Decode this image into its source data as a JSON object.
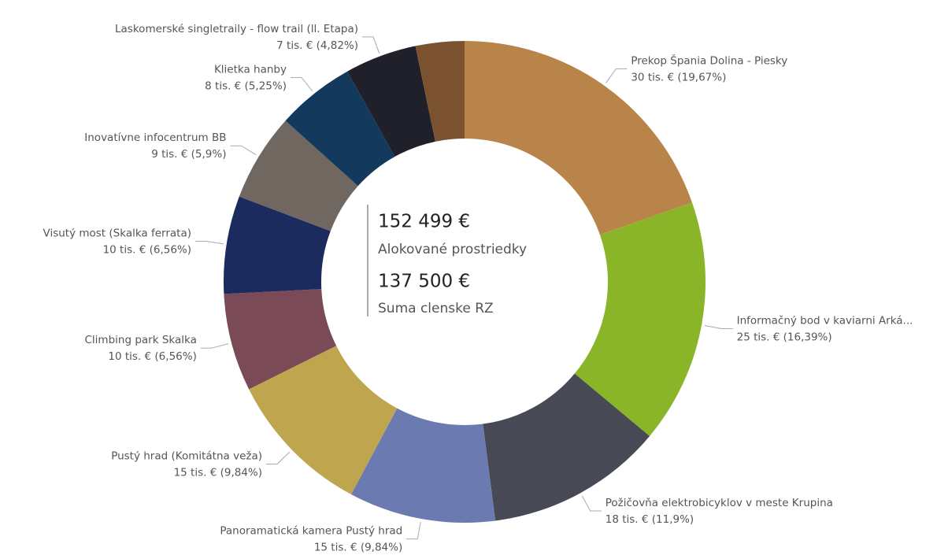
{
  "chart_data": {
    "type": "donut",
    "categories": [
      "Prekop Špania Dolina - Piesky",
      "Informačný bod v kaviarni Arká...",
      "Požičovňa elektrobicyklov v meste Krupina",
      "Panoramatická kamera Pustý hrad",
      "Pustý hrad (Komitátna veža)",
      "Climbing park Skalka",
      "Visutý most (Skalka ferrata)",
      "Inovatívne infocentrum BB",
      "Klietka hanby",
      "Laskomerské singletraily - flow trail (ll. Etapa)",
      null
    ],
    "values": [
      19.67,
      16.39,
      11.9,
      9.84,
      9.84,
      6.56,
      6.56,
      5.9,
      5.25,
      4.82,
      3.27
    ],
    "value_labels": [
      "30 tis. € (19,67%)",
      "25 tis. € (16,39%)",
      "18 tis. € (11,9%)",
      "15 tis. € (9,84%)",
      "15 tis. € (9,84%)",
      "10 tis. € (6,56%)",
      "10 tis. € (6,56%)",
      "9 tis. € (5,9%)",
      "8 tis. € (5,25%)",
      "7 tis. € (4,82%)",
      null
    ],
    "colors": [
      "#B9844A",
      "#8BB529",
      "#474A54",
      "#6B7AB0",
      "#BFA64E",
      "#7A4B57",
      "#1C2B5E",
      "#706761",
      "#133A5C",
      "#1F2029",
      "#7A5230"
    ],
    "center": [
      {
        "value": "152 499 €",
        "label": "Alokované prostriedky"
      },
      {
        "value": "137 500 €",
        "label": "Suma clenske RZ"
      }
    ]
  }
}
